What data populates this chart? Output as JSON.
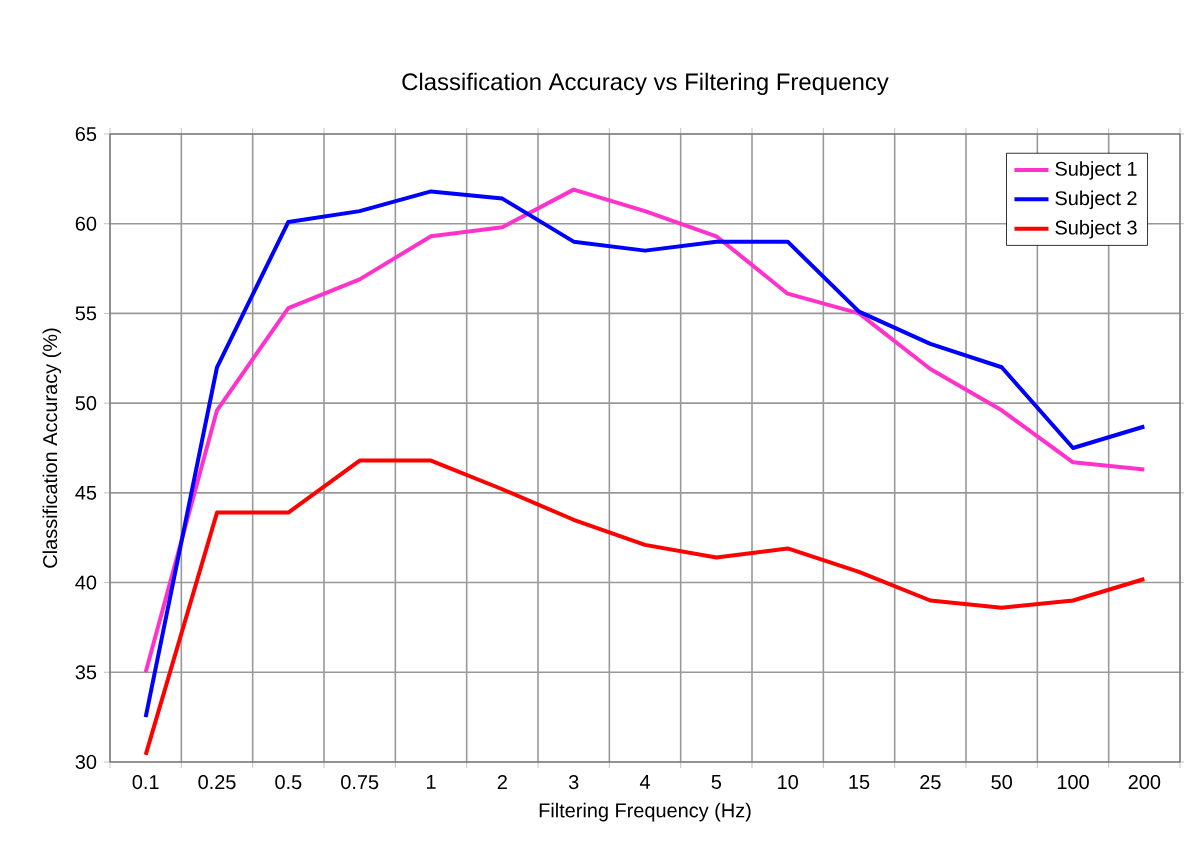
{
  "chart_data": {
    "type": "line",
    "title": "Classification Accuracy vs Filtering Frequency",
    "xlabel": "Filtering Frequency (Hz)",
    "ylabel": "Classification Accuracy  (%)",
    "categories": [
      "0.1",
      "0.25",
      "0.5",
      "0.75",
      "1",
      "2",
      "3",
      "4",
      "5",
      "10",
      "15",
      "25",
      "50",
      "100",
      "200"
    ],
    "series": [
      {
        "name": "Subject 1",
        "color": "#ff33cc",
        "values": [
          35,
          49.6,
          55.3,
          56.9,
          59.3,
          59.8,
          61.9,
          60.7,
          59.3,
          56.1,
          55.0,
          51.9,
          49.6,
          46.7,
          46.3
        ]
      },
      {
        "name": "Subject 2",
        "color": "#0000ff",
        "values": [
          32.5,
          52.0,
          60.1,
          60.7,
          61.8,
          61.4,
          59.0,
          58.5,
          59.0,
          59.0,
          55.1,
          53.3,
          52.0,
          47.5,
          48.7
        ]
      },
      {
        "name": "Subject 3",
        "color": "#ff0000",
        "values": [
          30.4,
          43.9,
          43.9,
          46.8,
          46.8,
          45.2,
          43.5,
          42.1,
          41.4,
          41.9,
          40.6,
          39.0,
          38.6,
          39.0,
          40.2
        ]
      }
    ],
    "ylim": [
      30,
      65
    ],
    "yticks": [
      30,
      35,
      40,
      45,
      50,
      55,
      60,
      65
    ],
    "grid": true,
    "legend": "top right",
    "marker": "none",
    "line_style": "solid"
  }
}
